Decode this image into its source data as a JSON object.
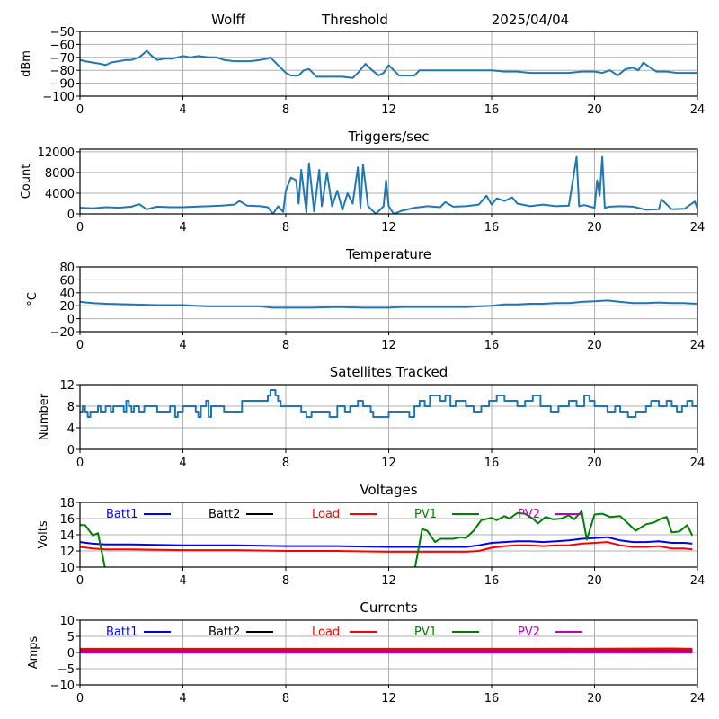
{
  "header": {
    "station": "Wolff",
    "mode": "Threshold",
    "date": "2025/04/04"
  },
  "chart_data": [
    {
      "id": "signal",
      "type": "line",
      "title": "",
      "xlabel": "",
      "ylabel": "dBm",
      "xlim": [
        0,
        24
      ],
      "ylim": [
        -100,
        -50
      ],
      "xticks": [
        0,
        4,
        8,
        12,
        16,
        20,
        24
      ],
      "yticks": [
        -100,
        -90,
        -80,
        -70,
        -60,
        -50
      ],
      "ytick_labels": [
        "−100",
        "−90",
        "−80",
        "−70",
        "−60",
        "−50"
      ],
      "grid": true,
      "series": [
        {
          "name": "signal",
          "color": "#1f77b4",
          "x": [
            0,
            0.2,
            0.5,
            0.8,
            1.0,
            1.2,
            1.5,
            1.8,
            2.0,
            2.3,
            2.6,
            2.8,
            3.0,
            3.3,
            3.6,
            4.0,
            4.3,
            4.6,
            5.0,
            5.3,
            5.6,
            6.0,
            6.3,
            6.6,
            7.0,
            7.3,
            7.4,
            7.6,
            7.8,
            8.0,
            8.2,
            8.5,
            8.7,
            8.9,
            9.0,
            9.2,
            9.5,
            9.8,
            10.2,
            10.6,
            10.8,
            11.1,
            11.3,
            11.6,
            11.8,
            12.0,
            12.2,
            12.4,
            12.7,
            13.0,
            13.2,
            13.6,
            14.0,
            14.5,
            15.0,
            15.5,
            16.0,
            16.5,
            17.0,
            17.5,
            18.0,
            18.5,
            19.0,
            19.5,
            20.0,
            20.3,
            20.6,
            20.9,
            21.2,
            21.5,
            21.7,
            21.9,
            22.1,
            22.4,
            22.8,
            23.2,
            24.0
          ],
          "y": [
            -72,
            -73,
            -74,
            -75,
            -76,
            -74,
            -73,
            -72,
            -72,
            -70,
            -65,
            -69,
            -72,
            -71,
            -71,
            -69,
            -70,
            -69,
            -70,
            -70,
            -72,
            -73,
            -73,
            -73,
            -72,
            -71,
            -70,
            -74,
            -78,
            -82,
            -84,
            -84,
            -80,
            -79,
            -81,
            -85,
            -85,
            -85,
            -85,
            -86,
            -82,
            -75,
            -79,
            -84,
            -82,
            -76,
            -80,
            -84,
            -84,
            -84,
            -80,
            -80,
            -80,
            -80,
            -80,
            -80,
            -80,
            -81,
            -81,
            -82,
            -82,
            -82,
            -82,
            -81,
            -81,
            -82,
            -80,
            -84,
            -79,
            -78,
            -80,
            -74,
            -77,
            -81,
            -81,
            -82,
            -82
          ]
        }
      ]
    },
    {
      "id": "triggers",
      "type": "line",
      "title": "Triggers/sec",
      "xlabel": "",
      "ylabel": "Count",
      "xlim": [
        0,
        24
      ],
      "ylim": [
        0,
        12500
      ],
      "xticks": [
        0,
        4,
        8,
        12,
        16,
        20,
        24
      ],
      "yticks": [
        0,
        4000,
        8000,
        12000
      ],
      "ytick_labels": [
        "0",
        "4000",
        "8000",
        "12000"
      ],
      "grid": true,
      "series": [
        {
          "name": "triggers",
          "color": "#1f77b4",
          "x": [
            0,
            0.5,
            1.0,
            1.5,
            2.0,
            2.3,
            2.6,
            3.0,
            3.5,
            4.0,
            4.5,
            5.0,
            5.5,
            6.0,
            6.2,
            6.5,
            7.0,
            7.3,
            7.5,
            7.7,
            7.9,
            8.0,
            8.2,
            8.4,
            8.5,
            8.6,
            8.8,
            8.9,
            9.1,
            9.3,
            9.4,
            9.6,
            9.8,
            10.0,
            10.2,
            10.4,
            10.6,
            10.8,
            10.9,
            11.0,
            11.2,
            11.5,
            11.8,
            11.9,
            12.0,
            12.2,
            12.5,
            13.0,
            13.5,
            14.0,
            14.2,
            14.5,
            15.0,
            15.5,
            15.8,
            16.0,
            16.2,
            16.5,
            16.8,
            17.0,
            17.5,
            18.0,
            18.5,
            19.0,
            19.3,
            19.4,
            19.6,
            20.0,
            20.1,
            20.2,
            20.3,
            20.4,
            20.6,
            21.0,
            21.5,
            22.0,
            22.5,
            22.6,
            23.0,
            23.5,
            23.9,
            24.0
          ],
          "y": [
            1200,
            1100,
            1300,
            1200,
            1400,
            1900,
            900,
            1400,
            1300,
            1300,
            1400,
            1500,
            1600,
            1800,
            2500,
            1600,
            1500,
            1300,
            0,
            1500,
            400,
            4500,
            7000,
            6500,
            2000,
            8500,
            300,
            9800,
            500,
            8500,
            1500,
            8000,
            1500,
            4500,
            800,
            4000,
            2000,
            9000,
            1200,
            9500,
            1500,
            0,
            1500,
            6500,
            1500,
            0,
            600,
            1200,
            1500,
            1300,
            2300,
            1400,
            1500,
            1800,
            3500,
            1800,
            3000,
            2500,
            3200,
            2000,
            1500,
            1800,
            1500,
            1600,
            11000,
            1500,
            1700,
            1200,
            6500,
            3500,
            11000,
            1200,
            1400,
            1500,
            1400,
            800,
            900,
            2800,
            900,
            1000,
            2400,
            1000
          ]
        }
      ]
    },
    {
      "id": "temperature",
      "type": "line",
      "title": "Temperature",
      "xlabel": "",
      "ylabel": "°C",
      "xlim": [
        0,
        24
      ],
      "ylim": [
        -20,
        80
      ],
      "xticks": [
        0,
        4,
        8,
        12,
        16,
        20,
        24
      ],
      "yticks": [
        -20,
        0,
        20,
        40,
        60,
        80
      ],
      "ytick_labels": [
        "−20",
        "0",
        "20",
        "40",
        "60",
        "80"
      ],
      "grid": true,
      "series": [
        {
          "name": "temperature",
          "color": "#1f77b4",
          "x": [
            0,
            0.5,
            1.0,
            2.0,
            3.0,
            4.0,
            4.5,
            5.0,
            6.0,
            7.0,
            7.5,
            8.0,
            9.0,
            10.0,
            11.0,
            12.0,
            12.5,
            13.0,
            14.0,
            15.0,
            15.5,
            16.0,
            16.5,
            17.0,
            17.5,
            18.0,
            18.5,
            19.0,
            19.5,
            20.0,
            20.5,
            21.0,
            21.5,
            22.0,
            22.5,
            23.0,
            23.5,
            24.0
          ],
          "y": [
            26,
            24,
            23,
            22,
            21,
            21,
            20,
            19,
            19,
            19,
            17,
            17,
            17,
            18,
            17,
            17,
            18,
            18,
            18,
            18,
            19,
            20,
            22,
            22,
            23,
            23,
            24,
            24,
            26,
            27,
            28,
            26,
            24,
            24,
            25,
            24,
            24,
            23
          ]
        }
      ]
    },
    {
      "id": "satellites",
      "type": "line",
      "title": "Satellites Tracked",
      "xlabel": "",
      "ylabel": "Number",
      "xlim": [
        0,
        24
      ],
      "ylim": [
        0,
        12
      ],
      "xticks": [
        0,
        4,
        8,
        12,
        16,
        20,
        24
      ],
      "yticks": [
        0,
        4,
        8,
        12
      ],
      "ytick_labels": [
        "0",
        "4",
        "8",
        "12"
      ],
      "grid": true,
      "series": [
        {
          "name": "satellites",
          "color": "#1f77b4",
          "step": true,
          "x": [
            0,
            0.1,
            0.2,
            0.3,
            0.4,
            0.6,
            0.7,
            0.8,
            1.0,
            1.2,
            1.3,
            1.5,
            1.7,
            1.8,
            1.9,
            2.0,
            2.1,
            2.3,
            2.5,
            3.0,
            3.2,
            3.5,
            3.7,
            3.8,
            4.0,
            4.5,
            4.6,
            4.7,
            4.9,
            5.0,
            5.1,
            5.3,
            5.6,
            6.0,
            6.3,
            7.0,
            7.3,
            7.4,
            7.6,
            7.7,
            7.8,
            8.0,
            8.5,
            8.6,
            8.8,
            9.0,
            9.5,
            9.7,
            10.0,
            10.3,
            10.5,
            10.8,
            11.0,
            11.3,
            11.4,
            12.0,
            12.5,
            12.8,
            13.0,
            13.2,
            13.4,
            13.6,
            14.0,
            14.2,
            14.4,
            14.6,
            15.0,
            15.3,
            15.6,
            15.9,
            16.2,
            16.5,
            17.0,
            17.3,
            17.6,
            17.9,
            18.3,
            18.6,
            19.0,
            19.3,
            19.6,
            19.8,
            20.0,
            20.5,
            20.8,
            21.0,
            21.3,
            21.6,
            22.0,
            22.2,
            22.5,
            22.8,
            23.0,
            23.2,
            23.4,
            23.6,
            23.8,
            24.0
          ],
          "y": [
            7,
            8,
            7,
            6,
            7,
            7,
            8,
            7,
            8,
            7,
            8,
            8,
            7,
            9,
            8,
            7,
            8,
            7,
            8,
            7,
            7,
            8,
            6,
            7,
            8,
            7,
            6,
            8,
            9,
            6,
            8,
            8,
            7,
            7,
            9,
            9,
            10,
            11,
            10,
            9,
            8,
            8,
            8,
            7,
            6,
            7,
            7,
            6,
            8,
            7,
            8,
            9,
            8,
            7,
            6,
            7,
            7,
            6,
            8,
            9,
            8,
            10,
            9,
            10,
            8,
            9,
            8,
            7,
            8,
            9,
            10,
            9,
            8,
            9,
            10,
            8,
            7,
            8,
            9,
            8,
            10,
            9,
            8,
            7,
            8,
            7,
            6,
            7,
            8,
            9,
            8,
            9,
            8,
            7,
            8,
            9,
            8,
            7
          ]
        }
      ]
    },
    {
      "id": "voltages",
      "type": "line",
      "title": "Voltages",
      "xlabel": "",
      "ylabel": "Volts",
      "xlim": [
        0,
        24
      ],
      "ylim": [
        10,
        18
      ],
      "xticks": [
        0,
        4,
        8,
        12,
        16,
        20,
        24
      ],
      "yticks": [
        10,
        12,
        14,
        16,
        18
      ],
      "ytick_labels": [
        "10",
        "12",
        "14",
        "16",
        "18"
      ],
      "grid": true,
      "legend": {
        "placement": "top",
        "layout": "inline-row"
      },
      "series": [
        {
          "name": "Batt1",
          "color": "#0000ff",
          "x": [
            0,
            0.5,
            1,
            2,
            4,
            6,
            8,
            10,
            12,
            13,
            14,
            15,
            15.5,
            16,
            16.5,
            17,
            17.5,
            18,
            18.5,
            19,
            19.5,
            20,
            20.5,
            21,
            21.5,
            22,
            22.5,
            23,
            23.5,
            23.8
          ],
          "y": [
            13.1,
            12.9,
            12.8,
            12.8,
            12.7,
            12.7,
            12.6,
            12.6,
            12.5,
            12.5,
            12.5,
            12.5,
            12.7,
            13.0,
            13.1,
            13.2,
            13.2,
            13.1,
            13.2,
            13.3,
            13.5,
            13.6,
            13.7,
            13.3,
            13.1,
            13.1,
            13.2,
            13.0,
            13.0,
            12.9
          ]
        },
        {
          "name": "Batt2",
          "color": "#000000",
          "x": [],
          "y": []
        },
        {
          "name": "Load",
          "color": "#ff0000",
          "x": [
            0,
            0.5,
            1,
            2,
            4,
            6,
            8,
            10,
            12,
            13,
            14,
            15,
            15.5,
            16,
            16.5,
            17,
            17.5,
            18,
            18.5,
            19,
            19.5,
            20,
            20.5,
            21,
            21.5,
            22,
            22.5,
            23,
            23.5,
            23.8
          ],
          "y": [
            12.5,
            12.3,
            12.2,
            12.2,
            12.1,
            12.1,
            12.0,
            12.0,
            11.9,
            11.9,
            11.9,
            11.9,
            12.0,
            12.4,
            12.6,
            12.7,
            12.7,
            12.6,
            12.7,
            12.7,
            12.9,
            13.0,
            13.1,
            12.7,
            12.5,
            12.5,
            12.6,
            12.3,
            12.3,
            12.2
          ]
        },
        {
          "name": "PV1",
          "color": "#008000",
          "x": [
            0,
            0.2,
            0.5,
            0.7,
            1.0,
            13.0,
            13.3,
            13.5,
            13.8,
            14.0,
            14.5,
            14.8,
            15.0,
            15.3,
            15.6,
            16.0,
            16.2,
            16.5,
            16.7,
            17.0,
            17.3,
            17.6,
            17.8,
            18.1,
            18.4,
            18.7,
            19.0,
            19.2,
            19.5,
            19.7,
            20.0,
            20.3,
            20.6,
            21.0,
            21.3,
            21.6,
            22.0,
            22.3,
            22.6,
            22.8,
            23.0,
            23.3,
            23.6,
            23.8
          ],
          "y": [
            15.2,
            15.2,
            13.9,
            14.2,
            9.5,
            9.5,
            14.7,
            14.5,
            13.1,
            13.5,
            13.5,
            13.7,
            13.6,
            14.5,
            15.8,
            16.1,
            15.8,
            16.3,
            16.0,
            16.7,
            16.6,
            16.0,
            15.4,
            16.2,
            15.9,
            16.0,
            16.4,
            15.9,
            16.9,
            13.4,
            16.5,
            16.6,
            16.2,
            16.3,
            15.4,
            14.5,
            15.3,
            15.5,
            16.0,
            16.2,
            14.3,
            14.4,
            15.2,
            13.9
          ]
        },
        {
          "name": "PV2",
          "color": "#bf00bf",
          "x": [],
          "y": []
        }
      ]
    },
    {
      "id": "currents",
      "type": "line",
      "title": "Currents",
      "xlabel": "",
      "ylabel": "Amps",
      "xlim": [
        0,
        24
      ],
      "ylim": [
        -10,
        10
      ],
      "xticks": [
        0,
        4,
        8,
        12,
        16,
        20,
        24
      ],
      "yticks": [
        -10,
        -5,
        0,
        5,
        10
      ],
      "ytick_labels": [
        "−10",
        "−5",
        "0",
        "5",
        "10"
      ],
      "grid": true,
      "legend": {
        "placement": "top",
        "layout": "inline-row"
      },
      "series": [
        {
          "name": "Batt1",
          "color": "#0000ff",
          "x": [
            0,
            23.8
          ],
          "y": [
            0.8,
            0.8
          ]
        },
        {
          "name": "Batt2",
          "color": "#000000",
          "x": [
            0,
            23.8
          ],
          "y": [
            0.5,
            0.5
          ]
        },
        {
          "name": "Load",
          "color": "#ff0000",
          "x": [
            0,
            6,
            12,
            18,
            23,
            23.8
          ],
          "y": [
            1.0,
            1.0,
            1.0,
            1.0,
            1.1,
            1.0
          ]
        },
        {
          "name": "PV1",
          "color": "#008000",
          "x": [],
          "y": []
        },
        {
          "name": "PV2",
          "color": "#bf00bf",
          "x": [
            0,
            23.8
          ],
          "y": [
            0.1,
            0.1
          ]
        }
      ]
    }
  ]
}
